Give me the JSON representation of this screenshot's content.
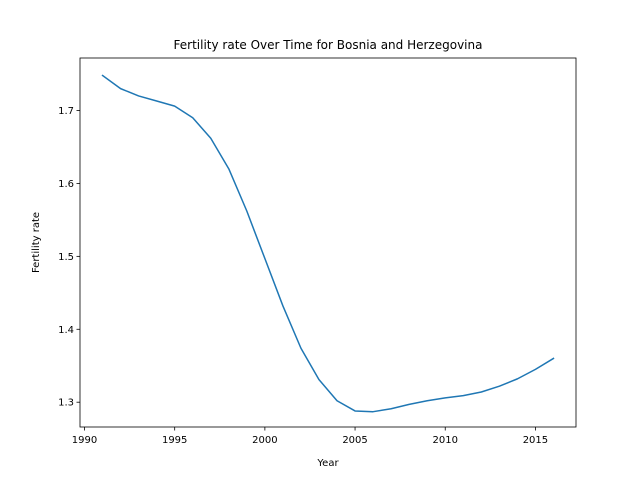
{
  "chart_data": {
    "type": "line",
    "title": "Fertility rate Over Time for Bosnia and Herzegovina",
    "xlabel": "Year",
    "ylabel": "Fertility rate",
    "xlim": [
      1989.75,
      2017.25
    ],
    "ylim": [
      1.266,
      1.772
    ],
    "xticks": [
      1990,
      1995,
      2000,
      2005,
      2010,
      2015
    ],
    "yticks": [
      1.3,
      1.4,
      1.5,
      1.6,
      1.7
    ],
    "xtick_labels": [
      "1990",
      "1995",
      "2000",
      "2005",
      "2010",
      "2015"
    ],
    "ytick_labels": [
      "1.3",
      "1.4",
      "1.5",
      "1.6",
      "1.7"
    ],
    "grid": false,
    "legend": null,
    "series": [
      {
        "name": "Fertility rate",
        "color": "#1f77b4",
        "x": [
          1991,
          1992,
          1993,
          1994,
          1995,
          1996,
          1997,
          1998,
          1999,
          2000,
          2001,
          2002,
          2003,
          2004,
          2005,
          2006,
          2007,
          2008,
          2009,
          2010,
          2011,
          2012,
          2013,
          2014,
          2015,
          2016
        ],
        "y": [
          1.748,
          1.73,
          1.72,
          1.713,
          1.706,
          1.69,
          1.662,
          1.62,
          1.562,
          1.497,
          1.432,
          1.374,
          1.331,
          1.302,
          1.288,
          1.287,
          1.291,
          1.297,
          1.302,
          1.306,
          1.309,
          1.314,
          1.322,
          1.332,
          1.345,
          1.36
        ]
      }
    ]
  }
}
